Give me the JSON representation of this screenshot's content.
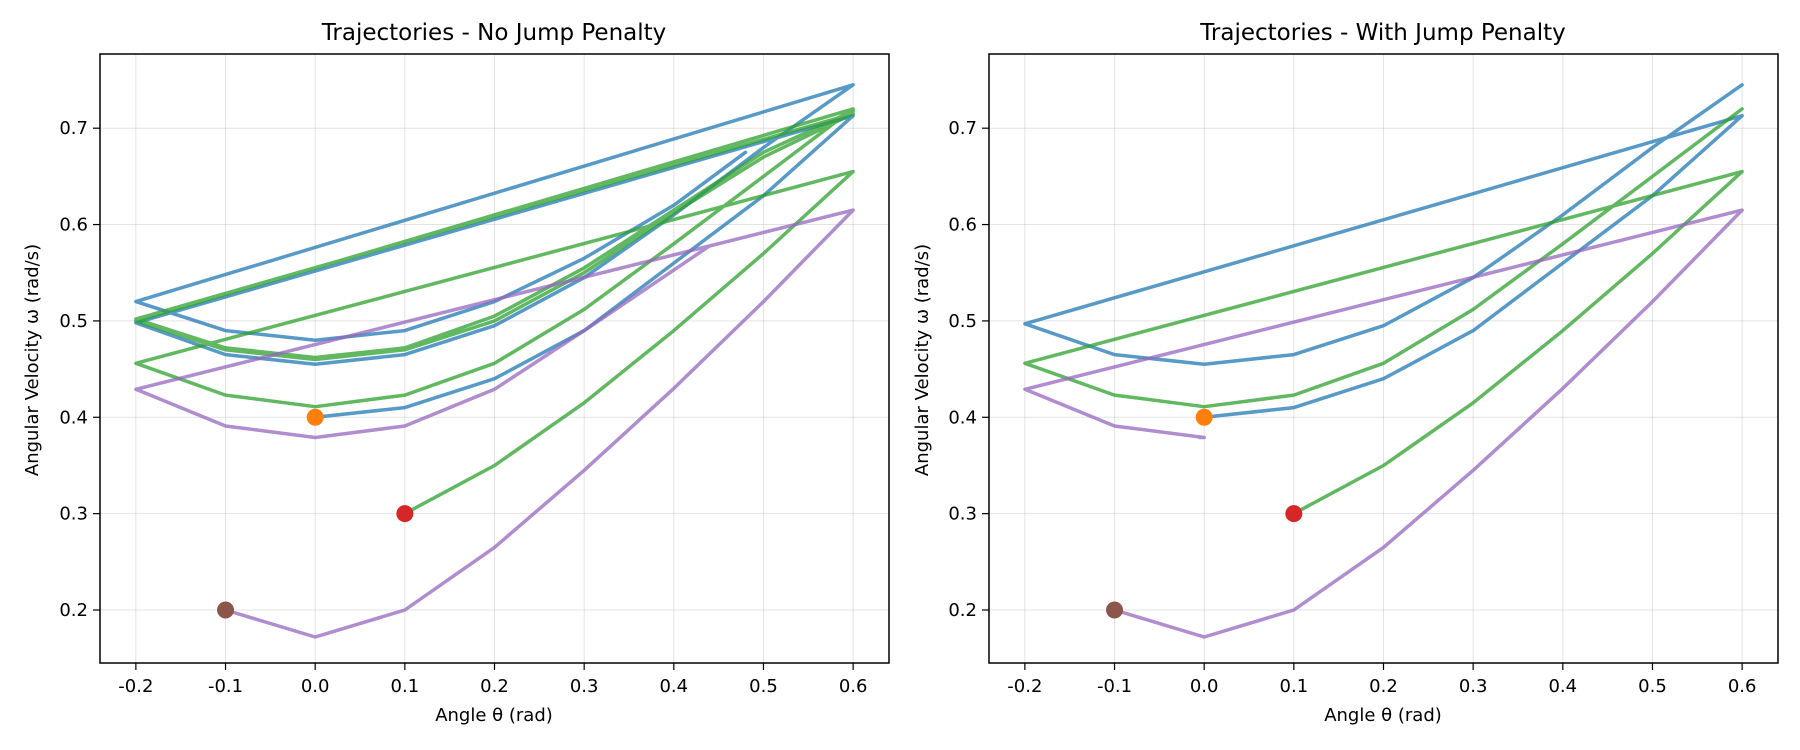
{
  "chart_data": [
    {
      "type": "line",
      "title": "Trajectories - No Jump Penalty",
      "xlabel": "Angle θ (rad)",
      "ylabel": "Angular Velocity ω (rad/s)",
      "xlim": [
        -0.24,
        0.64
      ],
      "ylim": [
        0.145,
        0.777
      ],
      "xticks": [
        -0.2,
        -0.1,
        0.0,
        0.1,
        0.2,
        0.3,
        0.4,
        0.5,
        0.6
      ],
      "yticks": [
        0.2,
        0.3,
        0.4,
        0.5,
        0.6,
        0.7
      ],
      "grid": true,
      "series": [
        {
          "color": "#1f77b4",
          "points": [
            [
              0,
              0.4
            ],
            [
              0.1,
              0.41
            ],
            [
              0.2,
              0.44
            ],
            [
              0.3,
              0.49
            ],
            [
              0.4,
              0.56
            ],
            [
              0.5,
              0.63
            ],
            [
              0.6,
              0.713
            ],
            [
              -0.2,
              0.498
            ],
            [
              -0.1,
              0.465
            ],
            [
              0,
              0.455
            ],
            [
              0.1,
              0.465
            ],
            [
              0.2,
              0.495
            ],
            [
              0.3,
              0.545
            ],
            [
              0.4,
              0.61
            ],
            [
              0.5,
              0.68
            ],
            [
              0.6,
              0.745
            ],
            [
              -0.2,
              0.52
            ],
            [
              -0.1,
              0.49
            ],
            [
              0,
              0.48
            ],
            [
              0.1,
              0.49
            ],
            [
              0.2,
              0.52
            ],
            [
              0.3,
              0.565
            ],
            [
              0.4,
              0.62
            ],
            [
              0.48,
              0.675
            ]
          ]
        },
        {
          "color": "#2ca02c",
          "points": [
            [
              0.1,
              0.3
            ],
            [
              0.2,
              0.35
            ],
            [
              0.3,
              0.415
            ],
            [
              0.4,
              0.49
            ],
            [
              0.5,
              0.57
            ],
            [
              0.6,
              0.655
            ],
            [
              -0.2,
              0.456
            ],
            [
              -0.1,
              0.423
            ],
            [
              0,
              0.411
            ],
            [
              0.1,
              0.423
            ],
            [
              0.2,
              0.456
            ],
            [
              0.3,
              0.512
            ],
            [
              0.4,
              0.58
            ],
            [
              0.5,
              0.65
            ],
            [
              0.6,
              0.72
            ],
            [
              -0.2,
              0.5
            ],
            [
              -0.1,
              0.47
            ],
            [
              0,
              0.46
            ],
            [
              0.1,
              0.47
            ],
            [
              0.2,
              0.5
            ],
            [
              0.3,
              0.55
            ],
            [
              0.4,
              0.612
            ],
            [
              0.5,
              0.67
            ],
            [
              0.6,
              0.715
            ],
            [
              -0.2,
              0.502
            ],
            [
              -0.1,
              0.472
            ],
            [
              0,
              0.462
            ],
            [
              0.1,
              0.472
            ],
            [
              0.2,
              0.505
            ],
            [
              0.3,
              0.555
            ],
            [
              0.4,
              0.615
            ],
            [
              0.5,
              0.675
            ],
            [
              0.6,
              0.718
            ]
          ]
        },
        {
          "color": "#9467bd",
          "points": [
            [
              -0.1,
              0.2
            ],
            [
              0,
              0.172
            ],
            [
              0.1,
              0.2
            ],
            [
              0.2,
              0.265
            ],
            [
              0.3,
              0.345
            ],
            [
              0.4,
              0.43
            ],
            [
              0.5,
              0.52
            ],
            [
              0.6,
              0.615
            ],
            [
              -0.2,
              0.429
            ],
            [
              -0.1,
              0.391
            ],
            [
              0,
              0.379
            ],
            [
              0.1,
              0.391
            ],
            [
              0.2,
              0.429
            ],
            [
              0.3,
              0.49
            ],
            [
              0.44,
              0.578
            ]
          ]
        }
      ],
      "markers": [
        {
          "x": 0.0,
          "y": 0.4,
          "color": "#ff7f0e"
        },
        {
          "x": 0.1,
          "y": 0.3,
          "color": "#d62728"
        },
        {
          "x": -0.1,
          "y": 0.2,
          "color": "#8c564b"
        }
      ]
    },
    {
      "type": "line",
      "title": "Trajectories - With Jump Penalty",
      "xlabel": "Angle θ (rad)",
      "ylabel": "Angular Velocity ω (rad/s)",
      "xlim": [
        -0.24,
        0.64
      ],
      "ylim": [
        0.145,
        0.777
      ],
      "xticks": [
        -0.2,
        -0.1,
        0.0,
        0.1,
        0.2,
        0.3,
        0.4,
        0.5,
        0.6
      ],
      "yticks": [
        0.2,
        0.3,
        0.4,
        0.5,
        0.6,
        0.7
      ],
      "grid": true,
      "series": [
        {
          "color": "#1f77b4",
          "points": [
            [
              0,
              0.4
            ],
            [
              0.1,
              0.41
            ],
            [
              0.2,
              0.44
            ],
            [
              0.3,
              0.49
            ],
            [
              0.4,
              0.56
            ],
            [
              0.5,
              0.63
            ],
            [
              0.6,
              0.713
            ],
            [
              -0.2,
              0.497
            ],
            [
              -0.1,
              0.465
            ],
            [
              0,
              0.455
            ],
            [
              0.1,
              0.465
            ],
            [
              0.2,
              0.495
            ],
            [
              0.3,
              0.545
            ],
            [
              0.4,
              0.61
            ],
            [
              0.5,
              0.68
            ],
            [
              0.6,
              0.745
            ]
          ]
        },
        {
          "color": "#2ca02c",
          "points": [
            [
              0.1,
              0.3
            ],
            [
              0.2,
              0.35
            ],
            [
              0.3,
              0.415
            ],
            [
              0.4,
              0.49
            ],
            [
              0.5,
              0.57
            ],
            [
              0.6,
              0.655
            ],
            [
              -0.2,
              0.456
            ],
            [
              -0.1,
              0.423
            ],
            [
              0,
              0.411
            ],
            [
              0.1,
              0.423
            ],
            [
              0.2,
              0.456
            ],
            [
              0.3,
              0.512
            ],
            [
              0.4,
              0.58
            ],
            [
              0.5,
              0.65
            ],
            [
              0.6,
              0.72
            ]
          ]
        },
        {
          "color": "#9467bd",
          "points": [
            [
              -0.1,
              0.2
            ],
            [
              0,
              0.172
            ],
            [
              0.1,
              0.2
            ],
            [
              0.2,
              0.265
            ],
            [
              0.3,
              0.345
            ],
            [
              0.4,
              0.43
            ],
            [
              0.5,
              0.52
            ],
            [
              0.6,
              0.615
            ],
            [
              -0.2,
              0.429
            ],
            [
              -0.1,
              0.391
            ],
            [
              0,
              0.379
            ],
            [
              -0.005,
              0.379
            ]
          ]
        }
      ],
      "markers": [
        {
          "x": 0.0,
          "y": 0.4,
          "color": "#ff7f0e"
        },
        {
          "x": 0.1,
          "y": 0.3,
          "color": "#d62728"
        },
        {
          "x": -0.1,
          "y": 0.2,
          "color": "#8c564b"
        }
      ]
    }
  ]
}
